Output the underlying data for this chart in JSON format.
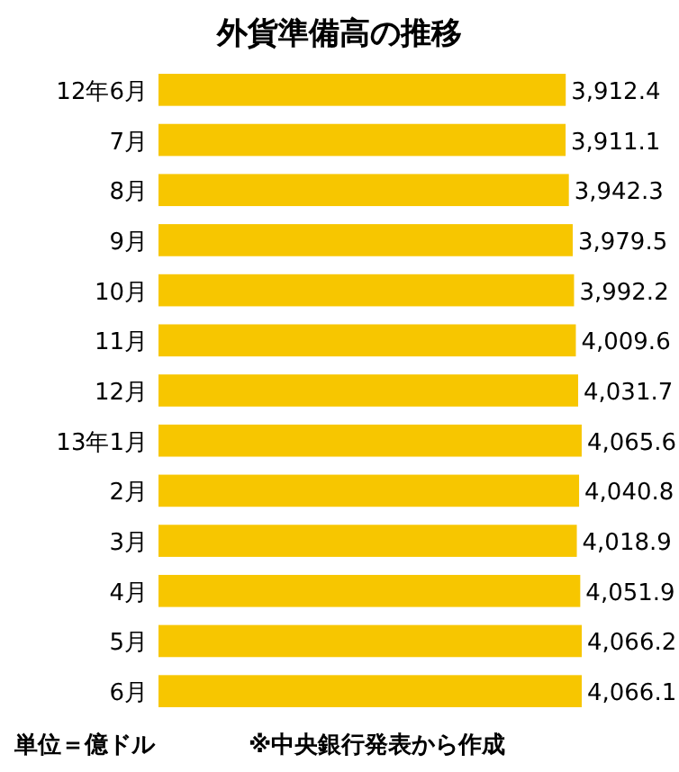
{
  "chart_data": {
    "type": "bar",
    "orientation": "horizontal",
    "title": "外貨準備高の推移",
    "categories": [
      "12年6月",
      "7月",
      "8月",
      "9月",
      "10月",
      "11月",
      "12月",
      "13年1月",
      "2月",
      "3月",
      "4月",
      "5月",
      "6月"
    ],
    "values": [
      3912.4,
      3911.1,
      3942.3,
      3979.5,
      3992.2,
      4009.6,
      4031.7,
      4065.6,
      4040.8,
      4018.9,
      4051.9,
      4066.2,
      4066.1
    ],
    "value_labels": [
      "3,912.4",
      "3,911.1",
      "3,942.3",
      "3,979.5",
      "3,992.2",
      "4,009.6",
      "4,031.7",
      "4,065.6",
      "4,040.8",
      "4,018.9",
      "4,051.9",
      "4,066.2",
      "4,066.1"
    ],
    "color": "#f7c600",
    "tick_labels": "y",
    "annotations": [
      "単位＝億ドル",
      "※中央銀行発表から作成"
    ]
  }
}
